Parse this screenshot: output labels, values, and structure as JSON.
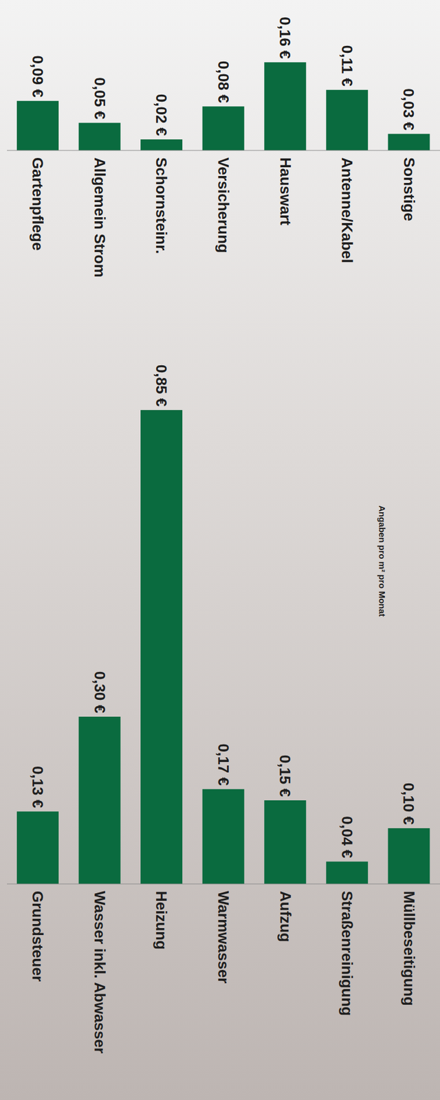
{
  "chart_data": [
    {
      "type": "bar",
      "categories": [
        "Gartenpflege",
        "Allgemein Strom",
        "Schornsteinr.",
        "Versicherung",
        "Hauswart",
        "Antenne/Kabel",
        "Sonstige"
      ],
      "values": [
        0.09,
        0.05,
        0.02,
        0.08,
        0.16,
        0.11,
        0.03
      ],
      "value_labels": [
        "0,09 €",
        "0,05 €",
        "0,02 €",
        "0,08 €",
        "0,16 €",
        "0,11 €",
        "0,03 €"
      ],
      "color": "#0a6b3f",
      "ylim": [
        0,
        0.25
      ],
      "data_labels": true,
      "tick_labels": "x",
      "grid": false
    },
    {
      "type": "bar",
      "categories": [
        "Grundsteuer",
        "Wasser inkl. Abwasser",
        "Heizung",
        "Warmwasser",
        "Aufzug",
        "Straßenreinigung",
        "Müllbeseitigung"
      ],
      "values": [
        0.13,
        0.3,
        0.85,
        0.17,
        0.15,
        0.04,
        0.1
      ],
      "value_labels": [
        "0,13 €",
        "0,30 €",
        "0,85 €",
        "0,17 €",
        "0,15 €",
        "0,04 €",
        "0,10 €"
      ],
      "color": "#0a6b3f",
      "ylim": [
        0,
        1.0
      ],
      "data_labels": true,
      "tick_labels": "x",
      "grid": false,
      "annotations": [
        "Angaben pro m² pro Monat"
      ]
    }
  ]
}
